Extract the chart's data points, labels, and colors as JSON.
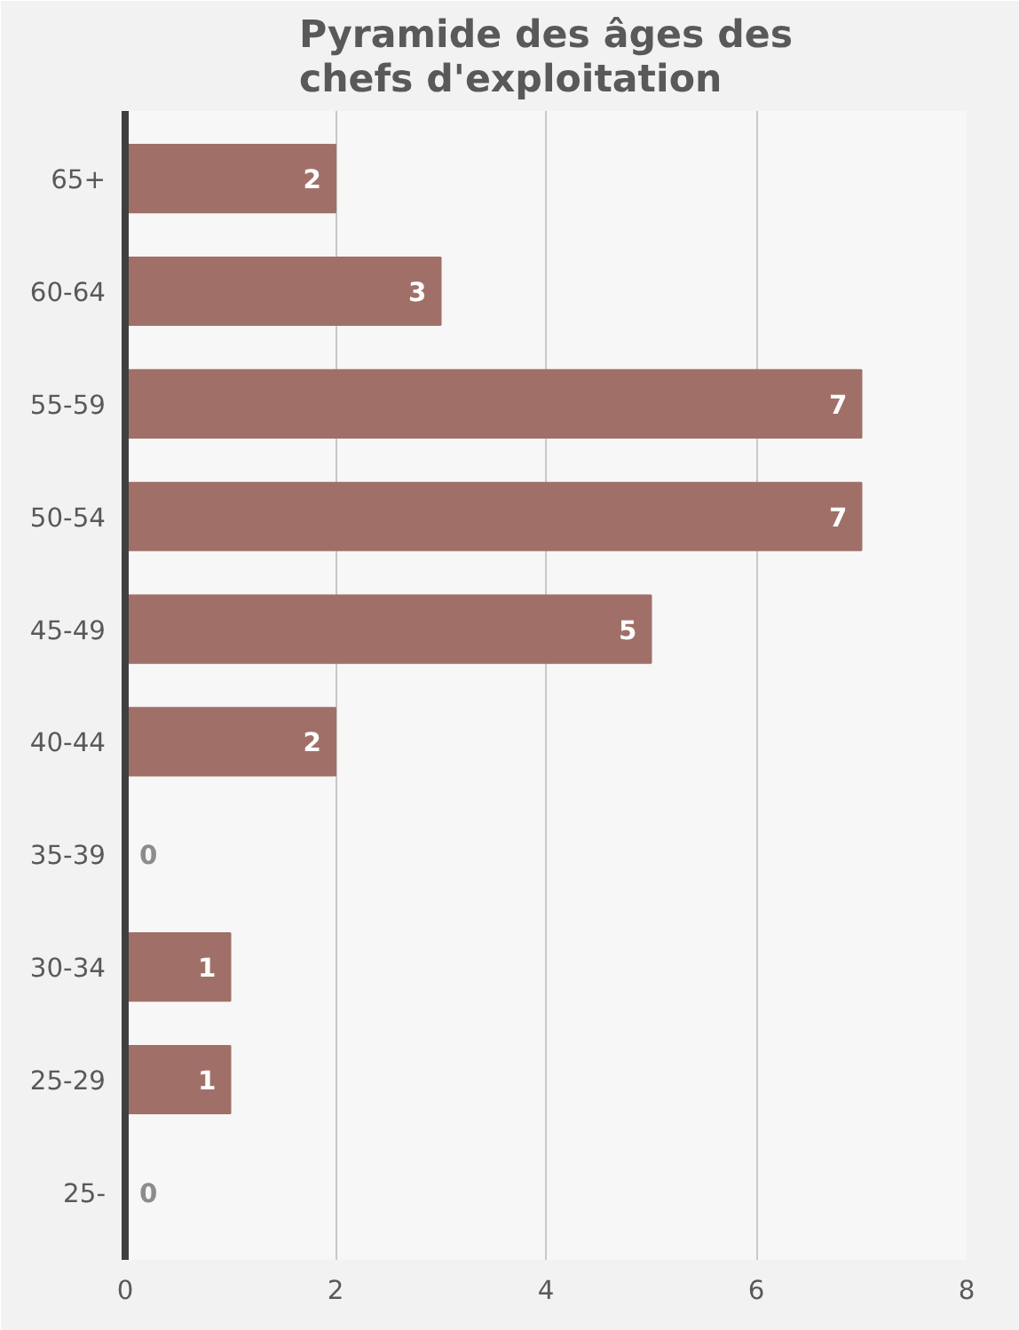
{
  "chart_data": {
    "type": "bar",
    "orientation": "horizontal",
    "title": "Pyramide des âges des chefs d'exploitation",
    "categories": [
      "65+",
      "60-64",
      "55-59",
      "50-54",
      "45-49",
      "40-44",
      "35-39",
      "30-34",
      "25-29",
      "25-"
    ],
    "values": [
      2,
      3,
      7,
      7,
      5,
      2,
      0,
      1,
      1,
      0
    ],
    "color": "#a07068",
    "xlim": [
      0,
      8
    ],
    "xticks": [
      0,
      2,
      4,
      6,
      8
    ],
    "grid": "x",
    "data_labels": true
  }
}
